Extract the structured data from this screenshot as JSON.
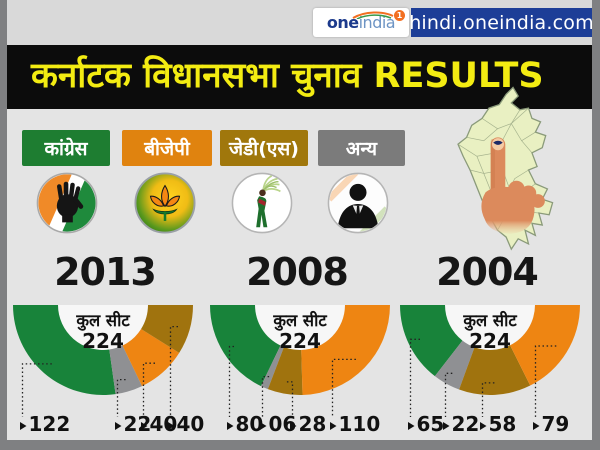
{
  "header": {
    "logo_one": "one",
    "logo_india": "india",
    "logo_badge": "1",
    "site_url": "hindi.oneindia.com"
  },
  "banner": {
    "title": "कर्नाटक विधानसभा चुनाव RESULTS"
  },
  "legend": {
    "items": [
      {
        "label": "कांग्रेस",
        "key": "congress",
        "icon": "congress-hand-symbol"
      },
      {
        "label": "बीजेपी",
        "key": "bjp",
        "icon": "bjp-lotus-symbol"
      },
      {
        "label": "जेडी(एस)",
        "key": "jds",
        "icon": "jds-farm-woman-symbol"
      },
      {
        "label": "अन्य",
        "key": "others",
        "icon": "person-silhouette-symbol"
      }
    ]
  },
  "chart_data": [
    {
      "type": "pie",
      "variant": "half-donut",
      "year": "2013",
      "center_label": "कुल सीट",
      "total_seats": "224",
      "total": 224,
      "series": [
        {
          "party": "कांग्रेस",
          "key": "congress",
          "seats": 122,
          "label": "122"
        },
        {
          "party": "अन्य",
          "key": "others",
          "seats": 22,
          "label": "22"
        },
        {
          "party": "बीजेपी",
          "key": "bjp",
          "seats": 40,
          "label": "40"
        },
        {
          "party": "जेडी(एस)",
          "key": "jds",
          "seats": 40,
          "label": "40"
        }
      ]
    },
    {
      "type": "pie",
      "variant": "half-donut",
      "year": "2008",
      "center_label": "कुल सीट",
      "total_seats": "224",
      "total": 224,
      "series": [
        {
          "party": "कांग्रेस",
          "key": "congress",
          "seats": 80,
          "label": "80"
        },
        {
          "party": "अन्य",
          "key": "others",
          "seats": 6,
          "label": "06"
        },
        {
          "party": "जेडी(एस)",
          "key": "jds",
          "seats": 28,
          "label": "28"
        },
        {
          "party": "बीजेपी",
          "key": "bjp",
          "seats": 110,
          "label": "110"
        }
      ]
    },
    {
      "type": "pie",
      "variant": "half-donut",
      "year": "2004",
      "center_label": "कुल सीट",
      "total_seats": "224",
      "total": 224,
      "series": [
        {
          "party": "कांग्रेस",
          "key": "congress",
          "seats": 65,
          "label": "65"
        },
        {
          "party": "अन्य",
          "key": "others",
          "seats": 22,
          "label": "22"
        },
        {
          "party": "जेडी(एस)",
          "key": "jds",
          "seats": 58,
          "label": "58"
        },
        {
          "party": "बीजेपी",
          "key": "bjp",
          "seats": 79,
          "label": "79"
        }
      ]
    }
  ],
  "colors": {
    "congress": "#18833a",
    "bjp": "#ee8512",
    "jds": "#a0730e",
    "others": "#8f9093",
    "congress_box": "#1e7d31",
    "bjp_box": "#e0830f",
    "jds_box": "#a0770c",
    "others_box": "#7b7b7b",
    "title_yellow": "#f3ec12",
    "banner_bg": "#0c0c0c",
    "url_badge_bg": "#1d3e97",
    "map_fill": "#e9f0c2",
    "hand_skin": "#dc8a5c",
    "ink_mark": "#1d2a66"
  }
}
